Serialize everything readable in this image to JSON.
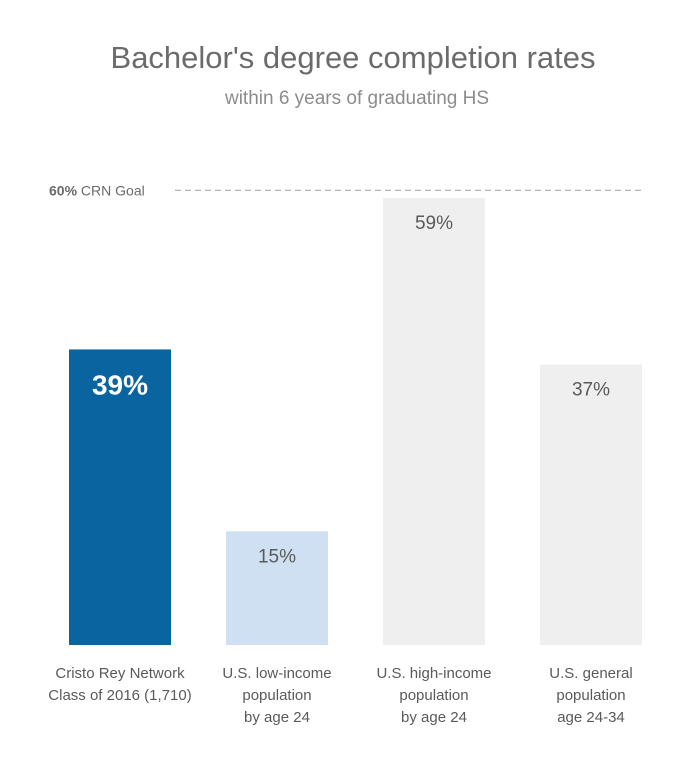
{
  "chart_data": {
    "type": "bar",
    "title": "Bachelor's degree completion rates",
    "subtitle": "within 6 years of graduating HS",
    "categories": [
      [
        "Cristo Rey Network",
        "Class of 2016 (1,710)"
      ],
      [
        "U.S. low-income",
        "population",
        "by age 24"
      ],
      [
        "U.S. high-income",
        "population",
        "by age 24"
      ],
      [
        "U.S. general",
        "population",
        "age 24-34"
      ]
    ],
    "values": [
      39,
      15,
      59,
      37
    ],
    "value_labels": [
      "39%",
      "15%",
      "59%",
      "37%"
    ],
    "colors": [
      "#0a64a0",
      "#cfe0f3",
      "#efefef",
      "#efefef"
    ],
    "highlight_index": 0,
    "ylim": [
      0,
      64
    ],
    "goal": {
      "value": 60,
      "value_label": "60%",
      "label": "CRN Goal",
      "color": "#aaaaaa"
    },
    "grid": false,
    "xlabel": "",
    "ylabel": ""
  }
}
